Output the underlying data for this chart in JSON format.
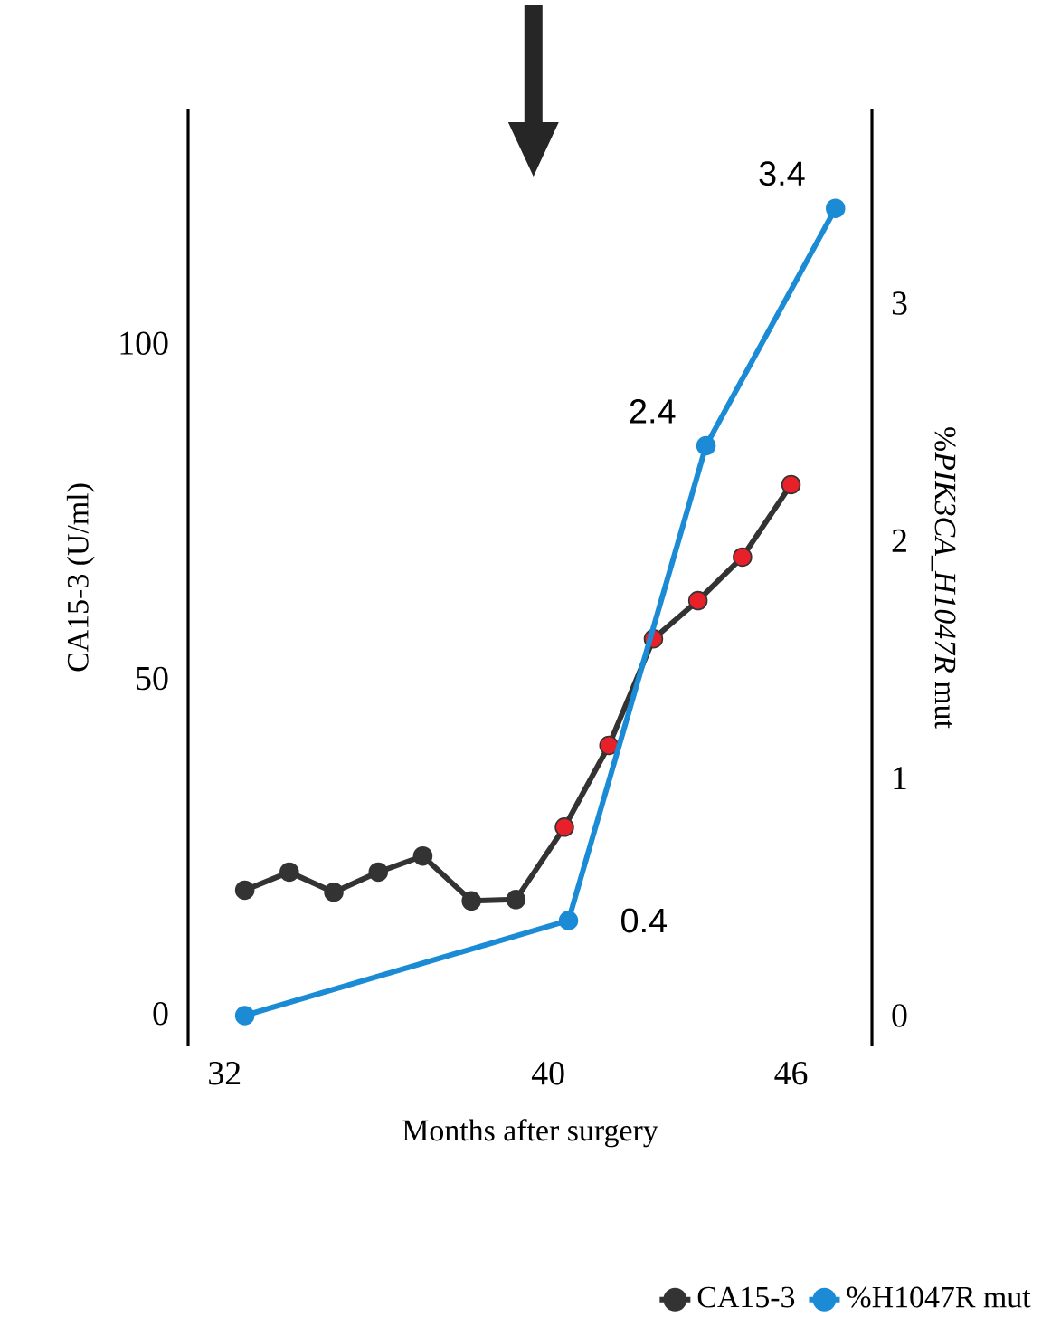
{
  "chart_data": {
    "type": "line",
    "xlabel": "Months after surgery",
    "ylabel": "CA15-3 (U/ml)",
    "y2label": "%*PIK3CA_H1047R* mut",
    "xlim": [
      31.1,
      48.0
    ],
    "xticks": [
      32,
      40,
      46
    ],
    "ylim": [
      -4.9,
      135
    ],
    "yticks": [
      0,
      50,
      100
    ],
    "y2lim": [
      -0.13,
      3.82
    ],
    "y2ticks": [
      0,
      1,
      2,
      3
    ],
    "marker": "circle",
    "legend": "bottom right",
    "series": [
      {
        "name": "CA15-3",
        "color": "#333333",
        "x": [
          32.5,
          33.6,
          34.7,
          35.8,
          36.9,
          38.1,
          39.2,
          40.4,
          41.5,
          42.6,
          43.7,
          44.8,
          46.0
        ],
        "values": [
          18.4,
          21.1,
          18.1,
          21.1,
          23.5,
          16.8,
          17.0,
          27.8,
          40.0,
          55.9,
          61.6,
          68.1,
          78.9
        ],
        "colors": [
          "#333333",
          "#333333",
          "#333333",
          "#333333",
          "#333333",
          "#333333",
          "#333333",
          "#e8202a",
          "#e8202a",
          "#e8202a",
          "#e8202a",
          "#e8202a",
          "#e8202a"
        ]
      },
      {
        "name": "%H1047R mut",
        "color": "#1b8bd6",
        "axis": "y2",
        "x": [
          32.5,
          40.5,
          43.9,
          47.1
        ],
        "values": [
          0,
          0.4,
          2.4,
          3.4
        ],
        "value_labels": [
          null,
          "0.4",
          "2.4",
          "3.4"
        ]
      }
    ]
  }
}
